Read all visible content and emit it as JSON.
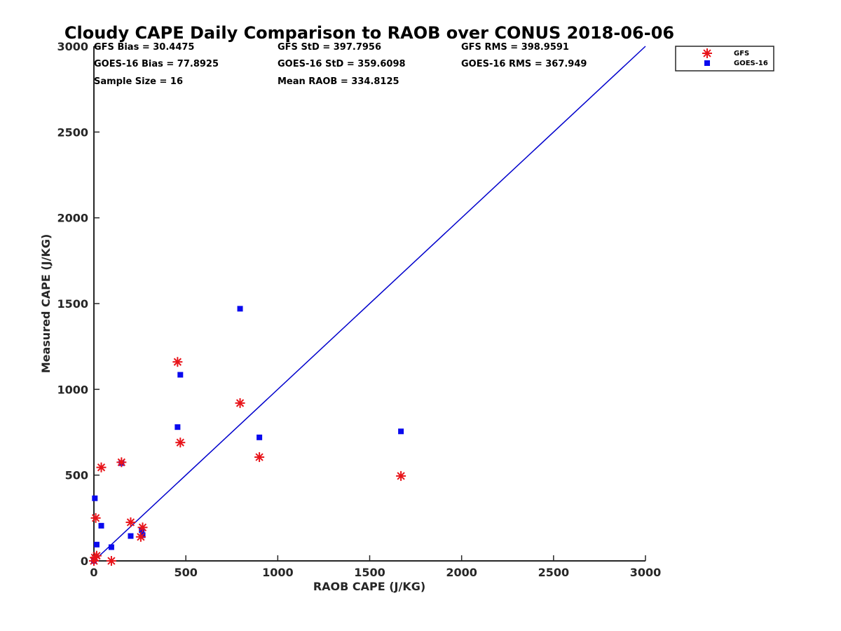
{
  "chart_data": {
    "type": "scatter",
    "title": "Cloudy CAPE Daily Comparison to RAOB over CONUS 2018-06-06",
    "xlabel": "RAOB CAPE (J/KG)",
    "ylabel": "Measured CAPE (J/KG)",
    "xlim": [
      0,
      3000
    ],
    "ylim": [
      0,
      3000
    ],
    "xticks": [
      "0",
      "500",
      "1000",
      "1500",
      "2000",
      "2500",
      "3000"
    ],
    "yticks": [
      "0",
      "500",
      "1000",
      "1500",
      "2000",
      "2500",
      "3000"
    ],
    "grid": false,
    "legend_position": "top-right",
    "stats": {
      "gfs_bias": "GFS Bias = 30.4475",
      "gfs_std": "GFS StD = 397.7956",
      "gfs_rms": "GFS RMS = 398.9591",
      "goes_bias": "GOES-16 Bias = 77.8925",
      "goes_std": "GOES-16 StD = 359.6098",
      "goes_rms": "GOES-16 RMS = 367.949",
      "sample_size": "Sample Size = 16",
      "mean_raob": "Mean RAOB = 334.8125"
    },
    "one_to_one_line": {
      "x": [
        0,
        3000
      ],
      "y": [
        0,
        3000
      ],
      "color": "#0000cc"
    },
    "series": [
      {
        "name": "GFS",
        "marker": "asterisk",
        "color": "#e8141a",
        "points": [
          [
            0,
            0
          ],
          [
            5,
            20
          ],
          [
            15,
            30
          ],
          [
            10,
            250
          ],
          [
            40,
            545
          ],
          [
            95,
            0
          ],
          [
            150,
            575
          ],
          [
            200,
            225
          ],
          [
            255,
            140
          ],
          [
            265,
            195
          ],
          [
            455,
            1160
          ],
          [
            470,
            690
          ],
          [
            795,
            920
          ],
          [
            900,
            605
          ],
          [
            1670,
            495
          ]
        ]
      },
      {
        "name": "GOES-16",
        "marker": "square",
        "color": "#0a0aee",
        "points": [
          [
            0,
            0
          ],
          [
            5,
            365
          ],
          [
            15,
            95
          ],
          [
            40,
            205
          ],
          [
            95,
            80
          ],
          [
            150,
            570
          ],
          [
            200,
            145
          ],
          [
            260,
            180
          ],
          [
            265,
            150
          ],
          [
            455,
            780
          ],
          [
            470,
            1085
          ],
          [
            795,
            1470
          ],
          [
            900,
            720
          ],
          [
            1670,
            755
          ]
        ]
      }
    ]
  }
}
